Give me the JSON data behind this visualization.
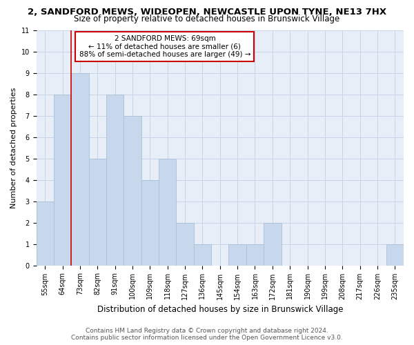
{
  "title1": "2, SANDFORD MEWS, WIDEOPEN, NEWCASTLE UPON TYNE, NE13 7HX",
  "title2": "Size of property relative to detached houses in Brunswick Village",
  "xlabel": "Distribution of detached houses by size in Brunswick Village",
  "ylabel": "Number of detached properties",
  "footer1": "Contains HM Land Registry data © Crown copyright and database right 2024.",
  "footer2": "Contains public sector information licensed under the Open Government Licence v3.0.",
  "categories": [
    "55sqm",
    "64sqm",
    "73sqm",
    "82sqm",
    "91sqm",
    "100sqm",
    "109sqm",
    "118sqm",
    "127sqm",
    "136sqm",
    "145sqm",
    "154sqm",
    "163sqm",
    "172sqm",
    "181sqm",
    "190sqm",
    "199sqm",
    "208sqm",
    "217sqm",
    "226sqm",
    "235sqm"
  ],
  "values": [
    3,
    8,
    9,
    5,
    8,
    7,
    4,
    5,
    2,
    1,
    0,
    1,
    1,
    2,
    0,
    0,
    0,
    0,
    0,
    0,
    1
  ],
  "bar_color": "#c8d8ec",
  "bar_edge_color": "#a8c0d8",
  "red_line_x": 1.5,
  "annotation_text": "2 SANDFORD MEWS: 69sqm\n← 11% of detached houses are smaller (6)\n88% of semi-detached houses are larger (49) →",
  "annotation_box_color": "#ffffff",
  "annotation_box_edge": "#cc0000",
  "red_line_color": "#cc0000",
  "ylim": [
    0,
    11
  ],
  "yticks": [
    0,
    1,
    2,
    3,
    4,
    5,
    6,
    7,
    8,
    9,
    10,
    11
  ],
  "grid_color": "#c8d4e8",
  "background_color": "#e8eef8",
  "title1_fontsize": 9.5,
  "title2_fontsize": 8.5,
  "xlabel_fontsize": 8.5,
  "ylabel_fontsize": 8.0,
  "tick_fontsize": 7.0,
  "footer_fontsize": 6.5,
  "annotation_fontsize": 7.5
}
